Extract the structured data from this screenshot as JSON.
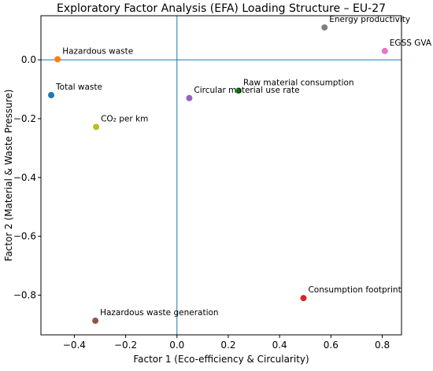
{
  "chart_data": {
    "type": "scatter",
    "title": "Exploratory Factor Analysis (EFA) Loading Structure – EU-27",
    "xlabel": "Factor 1 (Eco-efficiency & Circularity)",
    "ylabel": "Factor 2 (Material & Waste Pressure)",
    "xlim": [
      -0.53,
      0.875
    ],
    "ylim": [
      -0.935,
      0.15
    ],
    "xticks": [
      -0.4,
      -0.2,
      0.0,
      0.2,
      0.4,
      0.6,
      0.8
    ],
    "xtick_labels": [
      "−0.4",
      "−0.2",
      "0.0",
      "0.2",
      "0.4",
      "0.6",
      "0.8"
    ],
    "yticks": [
      0.0,
      -0.2,
      -0.4,
      -0.6,
      -0.8
    ],
    "ytick_labels": [
      "0.0",
      "−0.2",
      "−0.4",
      "−0.6",
      "−0.8"
    ],
    "reference_lines": {
      "x": 0,
      "y": 0,
      "color": "#1f77b4"
    },
    "grid": false,
    "points": [
      {
        "label": "Energy productivity",
        "x": 0.575,
        "y": 0.11,
        "color": "#7f7f7f"
      },
      {
        "label": "EGSS GVA",
        "x": 0.81,
        "y": 0.03,
        "color": "#e377c2"
      },
      {
        "label": "Hazardous waste",
        "x": -0.465,
        "y": 0.002,
        "color": "#ff7f0e"
      },
      {
        "label": "Total waste",
        "x": -0.49,
        "y": -0.12,
        "color": "#1f77b4"
      },
      {
        "label": "Raw material consumption",
        "x": 0.24,
        "y": -0.105,
        "color": "#2ca02c"
      },
      {
        "label": "Circular material use rate",
        "x": 0.048,
        "y": -0.13,
        "color": "#9467bd"
      },
      {
        "label": "CO₂ per km",
        "x": -0.315,
        "y": -0.228,
        "color": "#bcbd22"
      },
      {
        "label": "Consumption footprint",
        "x": 0.493,
        "y": -0.81,
        "color": "#d62728"
      },
      {
        "label": "Hazardous waste generation",
        "x": -0.318,
        "y": -0.887,
        "color": "#8c564b"
      }
    ]
  }
}
